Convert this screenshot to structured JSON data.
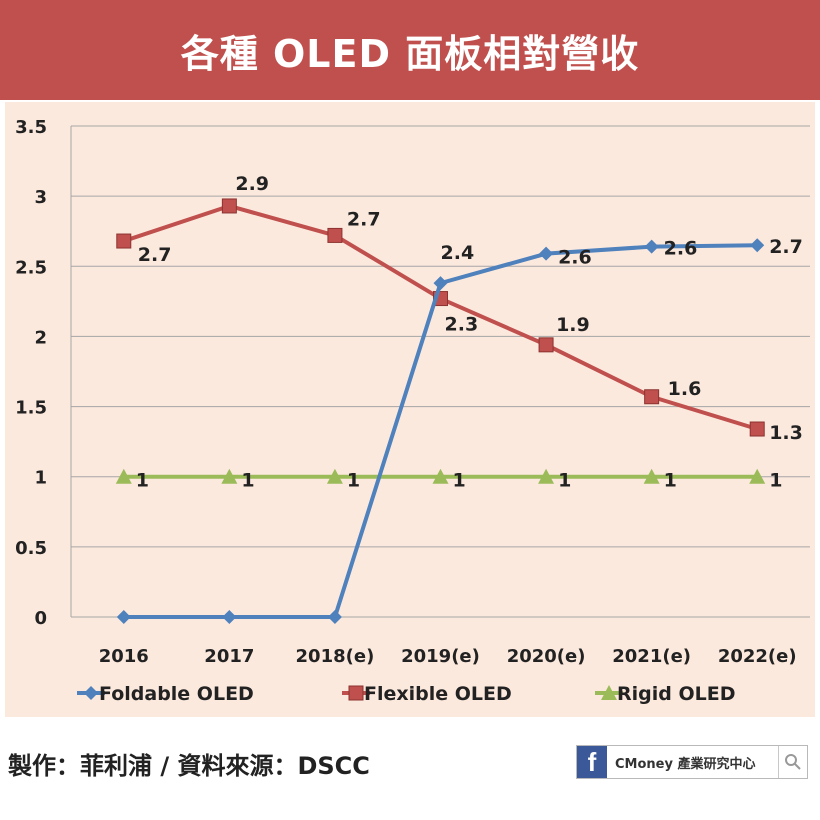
{
  "header": {
    "title": "各種 OLED 面板相對營收"
  },
  "footer": {
    "credit": "製作：菲利浦 / 資料來源：DSCC",
    "brand": "CMoney 產業研究中心",
    "brand_icon": "f"
  },
  "colors": {
    "banner": "#c0504d",
    "panel": "#fce9de",
    "foldable": "#4f81bd",
    "flexible": "#c0504d",
    "rigid": "#9bbb59"
  },
  "chart_data": {
    "type": "line",
    "title": "",
    "xlabel": "",
    "ylabel": "",
    "categories": [
      "2016",
      "2017",
      "2018(e)",
      "2019(e)",
      "2020(e)",
      "2021(e)",
      "2022(e)"
    ],
    "ylim": [
      0,
      3.5
    ],
    "yticks": [
      "0",
      "0.5",
      "1",
      "1.5",
      "2",
      "2.5",
      "3",
      "3.5"
    ],
    "grid": true,
    "legend_position": "bottom",
    "series": [
      {
        "name": "Foldable OLED",
        "marker": "diamond",
        "color": "#4f81bd",
        "values": [
          0,
          0,
          0,
          2.38,
          2.59,
          2.64,
          2.65
        ],
        "labels": [
          "",
          "",
          "",
          "2.4",
          "2.6",
          "2.6",
          "2.7"
        ]
      },
      {
        "name": "Flexible OLED",
        "marker": "square",
        "color": "#c0504d",
        "values": [
          2.68,
          2.93,
          2.72,
          2.27,
          1.94,
          1.57,
          1.34
        ],
        "labels": [
          "2.7",
          "2.9",
          "2.7",
          "2.3",
          "1.9",
          "1.6",
          "1.3"
        ]
      },
      {
        "name": "Rigid OLED",
        "marker": "triangle",
        "color": "#9bbb59",
        "values": [
          1,
          1,
          1,
          1,
          1,
          1,
          1
        ],
        "labels": [
          "1",
          "1",
          "1",
          "1",
          "1",
          "1",
          "1"
        ]
      }
    ]
  }
}
